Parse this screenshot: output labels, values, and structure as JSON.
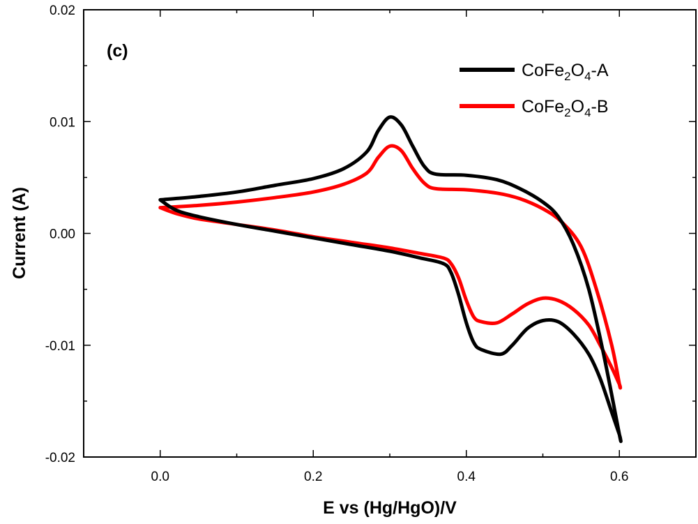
{
  "chart_data": {
    "type": "line",
    "panel_label": "(c)",
    "xlabel": "E vs (Hg/HgO)/V",
    "ylabel": "Current (A)",
    "xlim": [
      -0.1,
      0.7
    ],
    "ylim": [
      -0.02,
      0.02
    ],
    "x_ticks": [
      0.0,
      0.2,
      0.4,
      0.6
    ],
    "x_tick_labels": [
      "0.0",
      "0.2",
      "0.4",
      "0.6"
    ],
    "y_ticks": [
      -0.02,
      -0.01,
      0.0,
      0.01,
      0.02
    ],
    "y_tick_labels": [
      "-0.02",
      "-0.01",
      "0.00",
      "0.01",
      "0.02"
    ],
    "grid": false,
    "legend_position": "top-right",
    "series": [
      {
        "name": "CoFe2O4-A",
        "legend": {
          "base": "CoFe",
          "sub1": "2",
          "mid": "O",
          "sub2": "4",
          "suffix": "-A"
        },
        "color": "#000000",
        "x": [
          0.0,
          0.05,
          0.1,
          0.15,
          0.2,
          0.24,
          0.27,
          0.285,
          0.3,
          0.315,
          0.33,
          0.345,
          0.36,
          0.4,
          0.44,
          0.47,
          0.5,
          0.52,
          0.54,
          0.56,
          0.58,
          0.6,
          0.6,
          0.59,
          0.575,
          0.56,
          0.54,
          0.52,
          0.5,
          0.48,
          0.46,
          0.445,
          0.42,
          0.41,
          0.4,
          0.39,
          0.38,
          0.37,
          0.34,
          0.3,
          0.25,
          0.2,
          0.15,
          0.1,
          0.05,
          0.02,
          0.0
        ],
        "y": [
          0.003,
          0.0033,
          0.0037,
          0.0043,
          0.0049,
          0.0058,
          0.0073,
          0.0092,
          0.0104,
          0.0097,
          0.0078,
          0.006,
          0.0053,
          0.0052,
          0.0048,
          0.004,
          0.0028,
          0.0015,
          -0.001,
          -0.005,
          -0.011,
          -0.018,
          -0.018,
          -0.016,
          -0.013,
          -0.0108,
          -0.009,
          -0.0079,
          -0.0078,
          -0.0085,
          -0.01,
          -0.0108,
          -0.0104,
          -0.0098,
          -0.008,
          -0.0055,
          -0.0035,
          -0.0027,
          -0.0022,
          -0.0016,
          -0.001,
          -0.0004,
          0.0002,
          0.0008,
          0.0015,
          0.0021,
          0.003
        ]
      },
      {
        "name": "CoFe2O4-B",
        "legend": {
          "base": "CoFe",
          "sub1": "2",
          "mid": "O",
          "sub2": "4",
          "suffix": "-B"
        },
        "color": "#ff0000",
        "x": [
          0.0,
          0.05,
          0.1,
          0.15,
          0.2,
          0.24,
          0.27,
          0.285,
          0.3,
          0.315,
          0.33,
          0.345,
          0.36,
          0.4,
          0.44,
          0.47,
          0.5,
          0.525,
          0.55,
          0.57,
          0.59,
          0.6,
          0.6,
          0.59,
          0.575,
          0.56,
          0.54,
          0.52,
          0.5,
          0.48,
          0.46,
          0.44,
          0.42,
          0.41,
          0.4,
          0.39,
          0.38,
          0.37,
          0.34,
          0.3,
          0.25,
          0.2,
          0.15,
          0.1,
          0.05,
          0.02,
          0.0
        ],
        "y": [
          0.0023,
          0.0025,
          0.0028,
          0.0032,
          0.0037,
          0.0044,
          0.0054,
          0.0068,
          0.0078,
          0.0074,
          0.0058,
          0.0045,
          0.004,
          0.0039,
          0.0036,
          0.0031,
          0.0022,
          0.001,
          -0.0012,
          -0.005,
          -0.01,
          -0.0135,
          -0.0135,
          -0.012,
          -0.01,
          -0.0082,
          -0.0068,
          -0.006,
          -0.0058,
          -0.0063,
          -0.0072,
          -0.008,
          -0.0079,
          -0.0075,
          -0.006,
          -0.004,
          -0.0027,
          -0.0022,
          -0.0018,
          -0.0013,
          -0.0008,
          -0.0003,
          0.0003,
          0.0008,
          0.0013,
          0.0018,
          0.0023
        ]
      }
    ]
  }
}
